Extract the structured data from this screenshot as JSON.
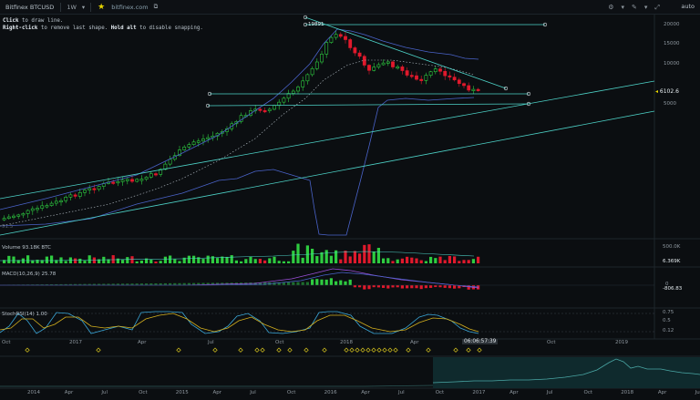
{
  "toolbar": {
    "symbol": "Bitfinex BTCUSD",
    "interval": "1W",
    "url": "bitfinex.com",
    "zoom_mode": "auto",
    "icons": [
      "chevron-down-icon",
      "star-icon",
      "link-icon",
      "settings-icon",
      "chevron-down-icon",
      "draw-icon",
      "chevron-down-icon",
      "expand-icon"
    ]
  },
  "hint": {
    "line1_key": "Click",
    "line1_text": " to draw line.",
    "line2_key": "Right-click",
    "line2_mid": " to remove last shape. ",
    "line2_key2": "Hold alt",
    "line2_end": " to disable snapping."
  },
  "main_chart": {
    "peak_label": "19891",
    "last_price": "6102.6",
    "y_ticks": [
      "20000",
      "15000",
      "10000",
      "5000"
    ],
    "watermark": "51.5"
  },
  "volume_pane": {
    "label": "Volume",
    "value": "93.18K BTC",
    "y_ticks": [
      "500.0K"
    ],
    "last": "6.369K"
  },
  "macd_pane": {
    "label": "MACD(10,26,9)",
    "value": "25.78",
    "y_ticks": [
      "0"
    ],
    "last": "-806.83"
  },
  "stoch_pane": {
    "label": "StochRSI(14)",
    "value": "1.00",
    "y_ticks": [
      "0.75",
      "0.5",
      "0.12"
    ]
  },
  "time_axis": {
    "labels": [
      "Oct",
      "2017",
      "Apr",
      "Jul",
      "Oct",
      "2018",
      "Apr",
      "Oct",
      "2019"
    ],
    "cursor_time": "06:06:57:39"
  },
  "navigator_axis": {
    "labels": [
      "2014",
      "Apr",
      "Jul",
      "Oct",
      "2015",
      "Apr",
      "Jul",
      "Oct",
      "2016",
      "Apr",
      "Jul",
      "Oct",
      "2017",
      "Apr",
      "Jul",
      "Oct",
      "2018",
      "Apr",
      "Jul"
    ]
  },
  "colors": {
    "background": "#0b0e11",
    "up": "#2ecc40",
    "down": "#e0192c",
    "drawing": "#4dd2c7",
    "bollinger": "#4a63c9",
    "macd_signal": "#9b4fd9",
    "stoch_k": "#3aa7d8",
    "stoch_d": "#d4b01e"
  }
}
